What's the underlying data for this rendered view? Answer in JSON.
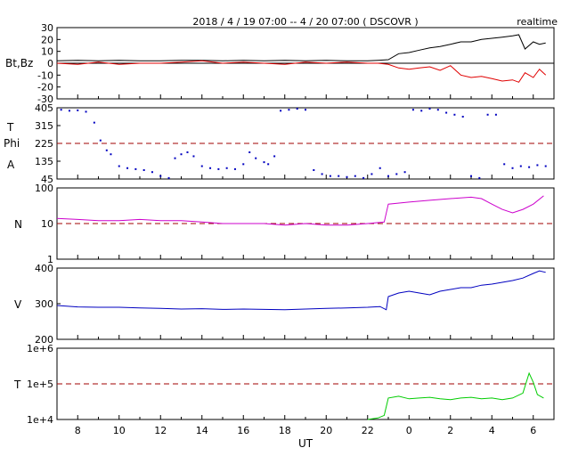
{
  "header": {
    "title": "2018 / 4 / 19   07:00 --  4 / 20   07:00 ( DSCOVR )",
    "mode": "realtime"
  },
  "xaxis": {
    "label": "UT",
    "tick_labels": [
      "8",
      "10",
      "12",
      "14",
      "16",
      "18",
      "20",
      "22",
      "0",
      "2",
      "4",
      "6"
    ]
  },
  "panels": {
    "b": {
      "ylabel": "Bt,Bz",
      "ticks": [
        "30",
        "20",
        "10",
        "0",
        "-10",
        "-20",
        "-30"
      ]
    },
    "phi": {
      "ylabel_t": "T",
      "ylabel_phi": "Phi",
      "ylabel_a": "A",
      "ticks": [
        "405",
        "315",
        "225",
        "135",
        "45"
      ]
    },
    "n": {
      "ylabel": "N",
      "ticks": [
        "100",
        "10",
        "1"
      ]
    },
    "v": {
      "ylabel": "V",
      "ticks": [
        "400",
        "300",
        "200"
      ]
    },
    "t": {
      "ylabel": "T",
      "ticks": [
        "1e+6",
        "1e+5",
        "1e+4"
      ]
    }
  },
  "chart_data": [
    {
      "type": "line",
      "panel": "Bt,Bz",
      "x_range": [
        7,
        31
      ],
      "ylim": [
        -30,
        30
      ],
      "reference_line": 0,
      "series": [
        {
          "color": "#000000",
          "x": [
            7,
            8,
            9,
            10,
            11,
            12,
            13,
            14,
            15,
            16,
            17,
            18,
            19,
            20,
            21,
            22,
            22.5,
            23,
            23.5,
            24,
            24.5,
            25,
            25.5,
            26,
            26.5,
            27,
            27.5,
            28,
            28.5,
            29,
            29.3,
            29.6,
            30,
            30.3,
            30.6
          ],
          "y": [
            2,
            2.5,
            2,
            2.5,
            2,
            2,
            2.5,
            2.5,
            2,
            2.5,
            2,
            2.5,
            2,
            2.5,
            2,
            2,
            2.5,
            3,
            8,
            9,
            11,
            13,
            14,
            16,
            18,
            18,
            20,
            21,
            22,
            23,
            24,
            12,
            18,
            16,
            17
          ]
        },
        {
          "color": "#e00000",
          "x": [
            7,
            8,
            9,
            10,
            11,
            12,
            13,
            14,
            15,
            16,
            17,
            18,
            19,
            20,
            21,
            22,
            22.5,
            23,
            23.5,
            24,
            24.5,
            25,
            25.5,
            26,
            26.5,
            27,
            27.5,
            28,
            28.5,
            29,
            29.3,
            29.6,
            30,
            30.3,
            30.6
          ],
          "y": [
            0,
            -1,
            1,
            -1,
            0,
            0,
            1,
            2,
            0,
            1,
            0,
            -1,
            1,
            0,
            1,
            0,
            0,
            -1,
            -4,
            -5,
            -4,
            -3,
            -6,
            -2,
            -10,
            -12,
            -11,
            -13,
            -15,
            -14,
            -16,
            -8,
            -12,
            -5,
            -10
          ]
        }
      ]
    },
    {
      "type": "scatter",
      "panel": "Phi",
      "x_range": [
        7,
        31
      ],
      "ylim": [
        45,
        405
      ],
      "reference_line": 225,
      "series": [
        {
          "color": "#0000c0",
          "x": [
            7.2,
            7.6,
            8,
            8.4,
            8.8,
            9.1,
            9.4,
            9.6,
            10,
            10.4,
            10.8,
            11.2,
            11.6,
            12,
            12.4,
            12.7,
            13,
            13.3,
            13.6,
            14,
            14.4,
            14.8,
            15.2,
            15.6,
            16,
            16.3,
            16.6,
            17,
            17.2,
            17.5,
            17.8,
            18.2,
            18.6,
            19,
            19.4,
            19.8,
            20.2,
            20.6,
            21,
            21.4,
            21.8,
            22.2,
            22.6,
            23,
            23.4,
            23.8,
            24.2,
            24.6,
            25,
            25.4,
            25.8,
            26.2,
            26.6,
            27,
            27.4,
            27.8,
            28.2,
            28.6,
            29,
            29.4,
            29.8,
            30.2,
            30.6
          ],
          "y": [
            395,
            390,
            392,
            385,
            330,
            240,
            190,
            170,
            110,
            100,
            95,
            90,
            80,
            60,
            50,
            150,
            170,
            180,
            160,
            110,
            100,
            95,
            100,
            95,
            120,
            180,
            150,
            130,
            120,
            160,
            390,
            395,
            400,
            395,
            90,
            70,
            60,
            60,
            55,
            60,
            50,
            70,
            100,
            60,
            70,
            80,
            395,
            390,
            400,
            395,
            380,
            370,
            360,
            60,
            50,
            370,
            370,
            120,
            100,
            110,
            105,
            115,
            110
          ]
        }
      ]
    },
    {
      "type": "line",
      "panel": "N",
      "scale": "log",
      "x_range": [
        7,
        31
      ],
      "ylim": [
        1,
        100
      ],
      "reference_line": 10,
      "series": [
        {
          "color": "#cc00cc",
          "x": [
            7,
            8,
            9,
            10,
            11,
            12,
            13,
            14,
            15,
            16,
            17,
            18,
            19,
            20,
            21,
            22,
            22.8,
            23,
            24,
            25,
            26,
            27,
            27.5,
            28,
            28.5,
            29,
            29.5,
            30,
            30.5
          ],
          "y": [
            14,
            13,
            12,
            12,
            13,
            12,
            12,
            11,
            10,
            10,
            10,
            9,
            10,
            9,
            9,
            10,
            11,
            35,
            40,
            45,
            50,
            55,
            50,
            35,
            25,
            20,
            25,
            35,
            60
          ]
        }
      ]
    },
    {
      "type": "line",
      "panel": "V",
      "x_range": [
        7,
        31
      ],
      "ylim": [
        200,
        400
      ],
      "series": [
        {
          "color": "#0000c0",
          "x": [
            7,
            8,
            9,
            10,
            11,
            12,
            13,
            14,
            15,
            16,
            17,
            18,
            19,
            20,
            21,
            22,
            22.6,
            22.9,
            23,
            23.5,
            24,
            24.5,
            25,
            25.5,
            26,
            26.5,
            27,
            27.5,
            28,
            28.5,
            29,
            29.5,
            30,
            30.3,
            30.6
          ],
          "y": [
            295,
            291,
            290,
            290,
            288,
            287,
            285,
            286,
            284,
            285,
            284,
            283,
            285,
            287,
            288,
            290,
            292,
            283,
            320,
            330,
            335,
            330,
            325,
            335,
            340,
            345,
            345,
            352,
            355,
            360,
            365,
            372,
            385,
            392,
            388
          ]
        }
      ]
    },
    {
      "type": "line",
      "panel": "T",
      "scale": "log",
      "x_range": [
        7,
        31
      ],
      "ylim": [
        10000,
        1000000
      ],
      "reference_line": 100000,
      "series": [
        {
          "color": "#00cc00",
          "x": [
            22,
            22.5,
            22.8,
            23,
            23.5,
            24,
            24.5,
            25,
            25.5,
            26,
            26.5,
            27,
            27.5,
            28,
            28.5,
            29,
            29.5,
            29.8,
            30,
            30.2,
            30.5
          ],
          "y": [
            10000,
            11000,
            13000,
            40000,
            45000,
            38000,
            40000,
            42000,
            38000,
            36000,
            40000,
            42000,
            38000,
            40000,
            36000,
            40000,
            55000,
            200000,
            110000,
            50000,
            40000
          ]
        }
      ]
    }
  ]
}
